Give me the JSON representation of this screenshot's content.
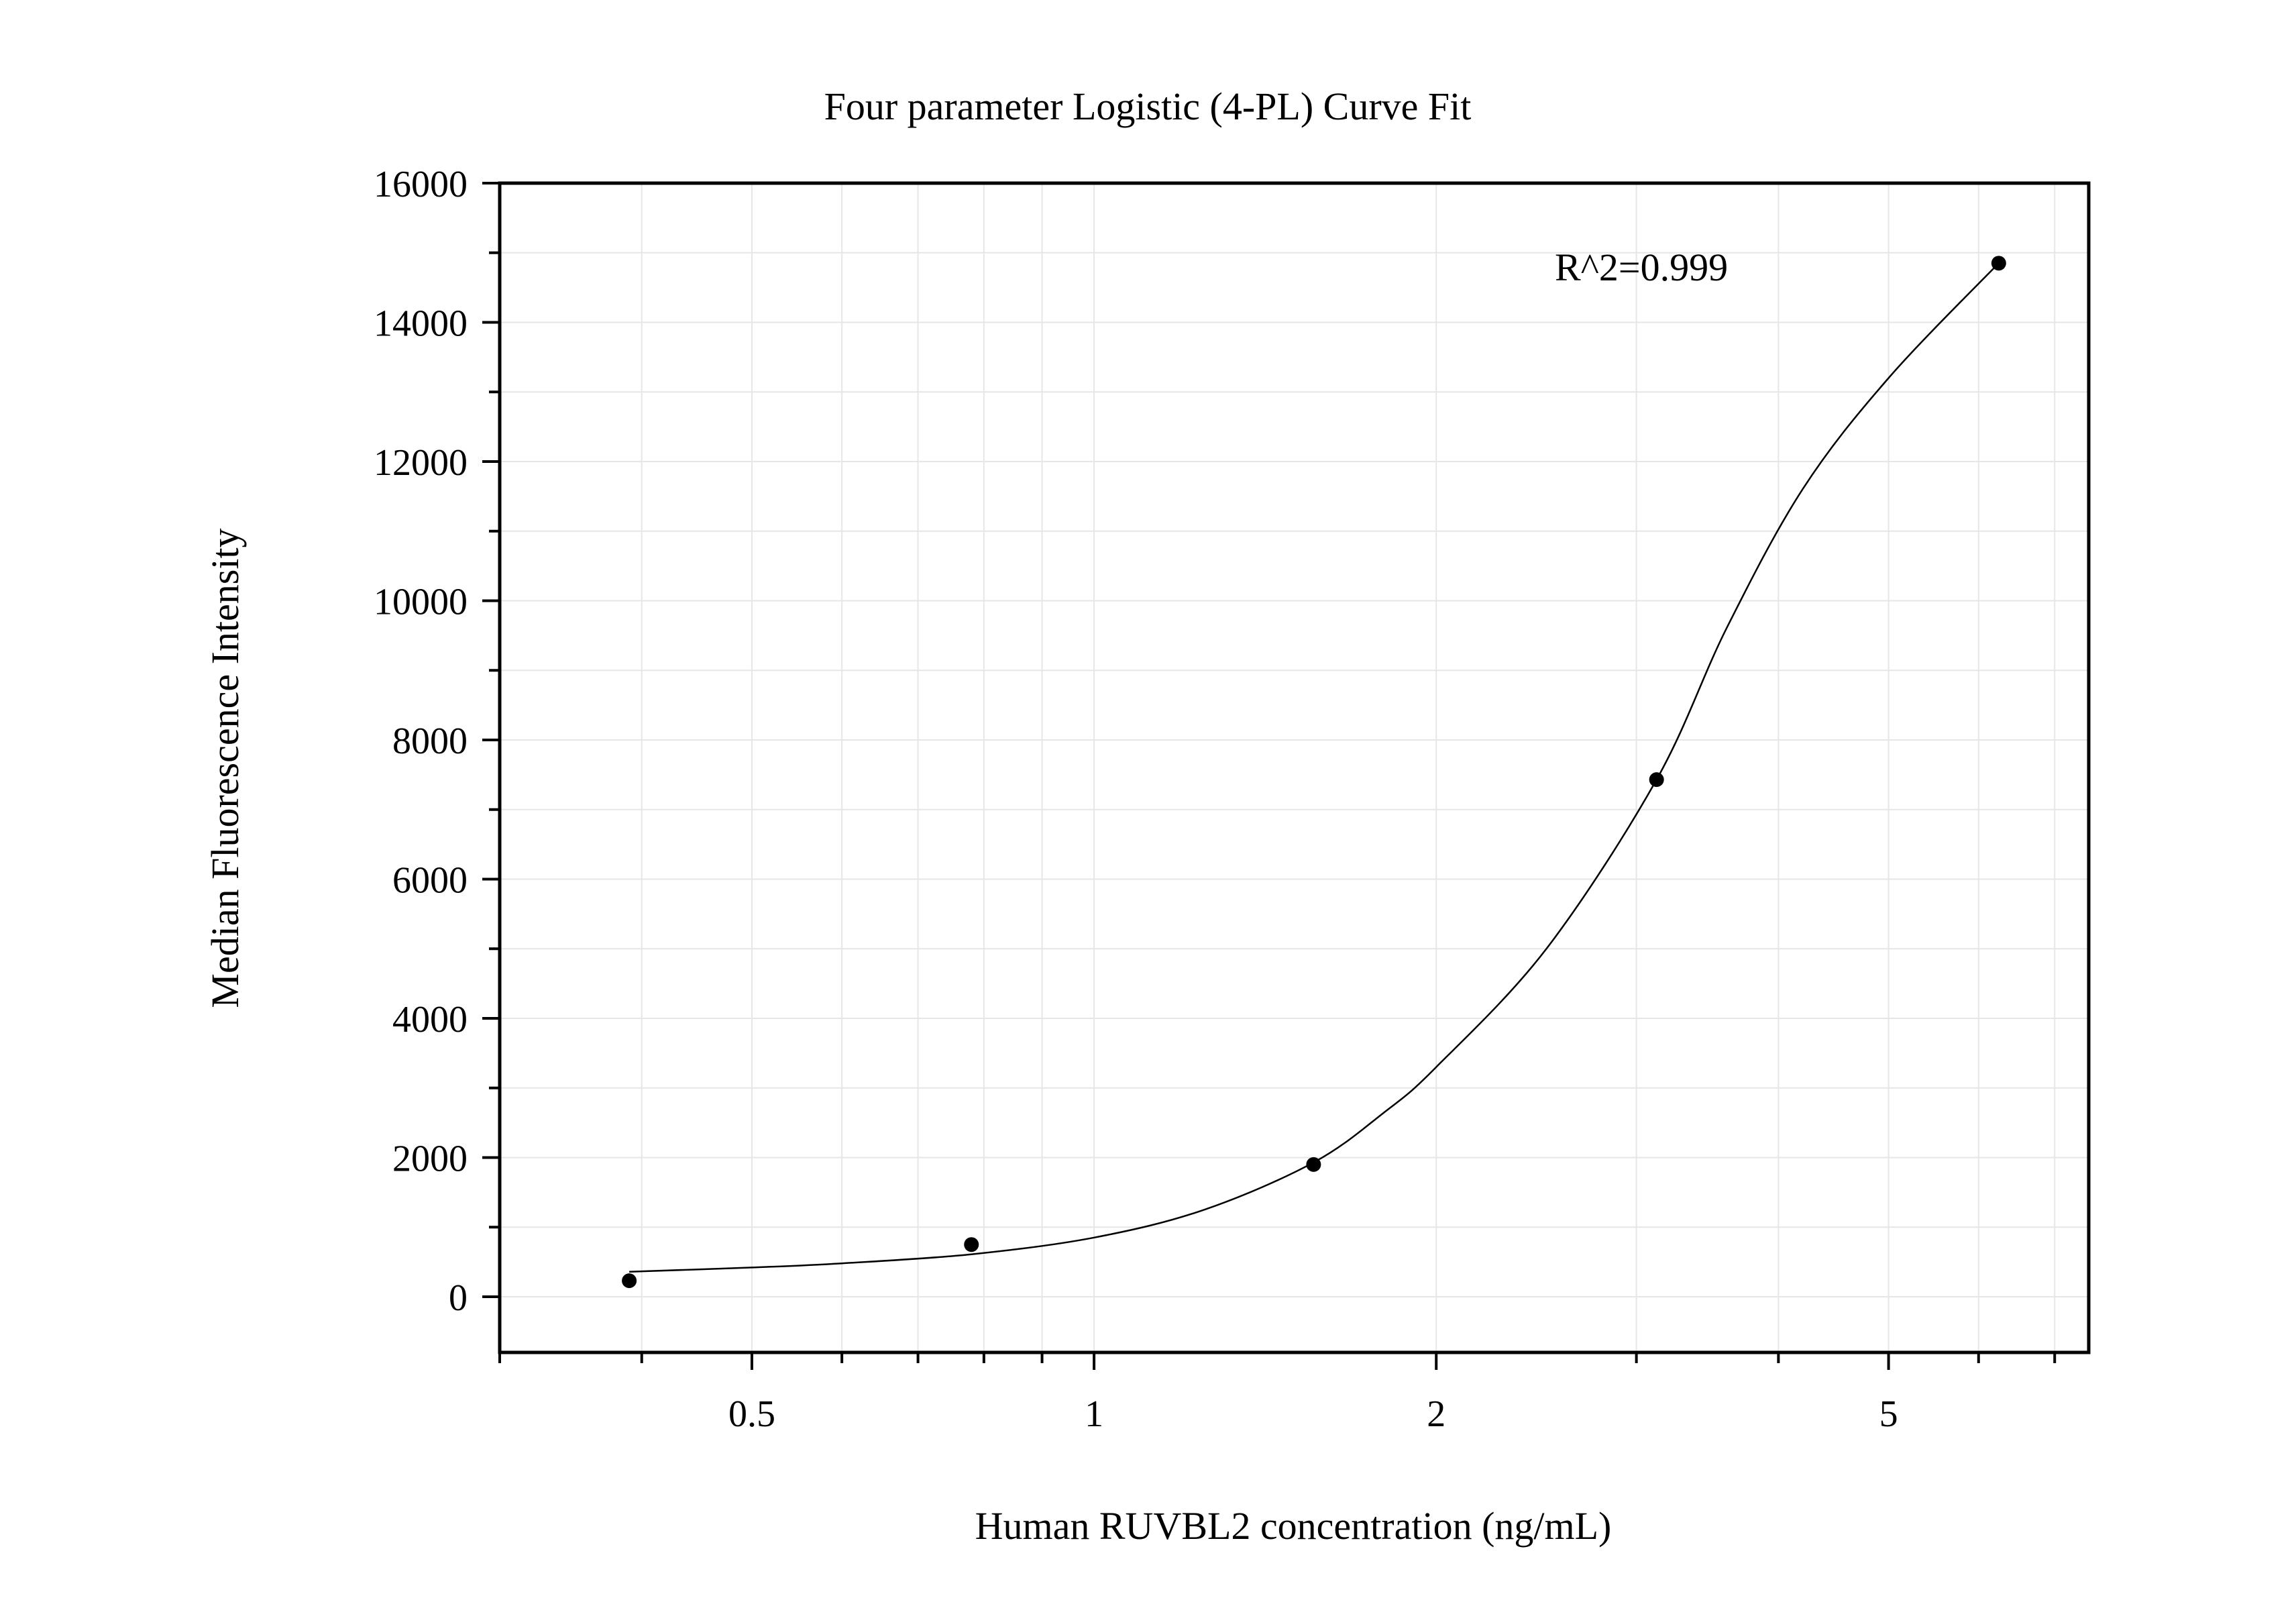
{
  "chart_data": {
    "type": "scatter",
    "title": "Four parameter Logistic (4-PL) Curve Fit",
    "xlabel": "Human RUVBL2 concentration (ng/mL)",
    "ylabel": "Median Fluorescence Intensity",
    "x_scale": "log",
    "xlim": [
      0.3,
      7.5
    ],
    "ylim": [
      -800,
      16000
    ],
    "x_ticks": [
      0.5,
      1,
      2,
      5
    ],
    "x_tick_labels": [
      "0.5",
      "1",
      "2",
      "5"
    ],
    "y_ticks": [
      0,
      2000,
      4000,
      6000,
      8000,
      10000,
      12000,
      14000,
      16000
    ],
    "y_tick_labels": [
      "0",
      "2000",
      "4000",
      "6000",
      "8000",
      "10000",
      "12000",
      "14000",
      "16000"
    ],
    "grid": true,
    "annotation": "R^2=0.999",
    "series": [
      {
        "x": [
          0.39,
          0.78,
          1.56,
          3.125,
          6.25
        ],
        "y": [
          230,
          750,
          1900,
          7430,
          14850
        ]
      }
    ],
    "fit": {
      "model": "4PL",
      "x": [
        0.39,
        0.5,
        0.6,
        0.78,
        1.0,
        1.25,
        1.56,
        1.8,
        2.0,
        2.5,
        3.125,
        3.6,
        4.2,
        5.0,
        6.25
      ],
      "y": [
        360,
        420,
        480,
        610,
        850,
        1250,
        1930,
        2650,
        3300,
        5000,
        7430,
        9600,
        11600,
        13200,
        14850
      ]
    }
  }
}
